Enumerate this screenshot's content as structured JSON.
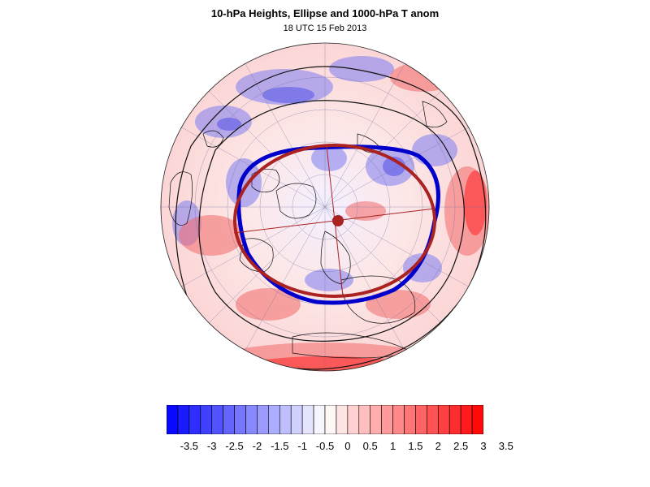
{
  "figure": {
    "title": "10-hPa Heights, Ellipse and 1000-hPa T anom",
    "subtitle": "18 UTC 15 Feb 2013"
  },
  "colorbar": {
    "labels": [
      "-3.5",
      "-3",
      "-2.5",
      "-2",
      "-1.5",
      "-1",
      "-0.5",
      "0",
      "0.5",
      "1",
      "1.5",
      "2",
      "2.5",
      "3",
      "3.5"
    ],
    "range": [
      -3.5,
      3.5
    ],
    "cmap": "blue-white-red",
    "colors": {
      "negative_max": "#0000ff",
      "neutral": "#ffffff",
      "positive_max": "#ff0000"
    }
  },
  "map": {
    "projection": "polar-stereographic (north pole)",
    "field": "1000-hPa temperature anomaly (shaded)",
    "contours": "10-hPa geopotential heights (black)",
    "vortex_edge_color": "#0000cc",
    "ellipse_color": "#aa2222"
  }
}
